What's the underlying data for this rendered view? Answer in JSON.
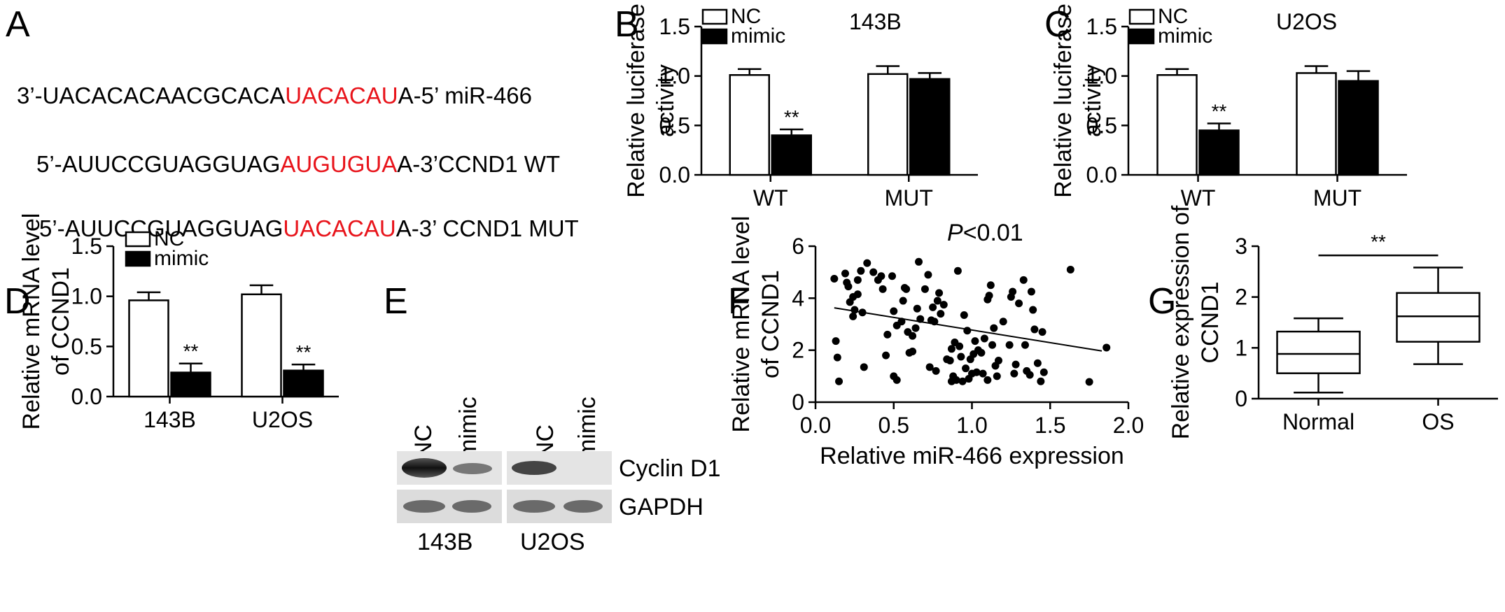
{
  "panels": {
    "A": "A",
    "B": "B",
    "C": "C",
    "D": "D",
    "E": "E",
    "F": "F",
    "G": "G"
  },
  "sequences": [
    {
      "prefix": "3’-UACACACAACGCACA",
      "highlight": "UACACAU",
      "suffix": "A-5’  miR-466"
    },
    {
      "prefix": "5’-AUUCCGUAGGUAG",
      "highlight": "AUGUGUA",
      "suffix": "A-3’CCND1 WT"
    },
    {
      "prefix": "5’-AUUCCGUAGGUAG",
      "highlight": "UACACAU",
      "suffix": "A-3’ CCND1 MUT"
    }
  ],
  "colors": {
    "highlight": "#e8141b",
    "black": "#000000",
    "white": "#ffffff"
  },
  "legend": {
    "nc": "NC",
    "mimic": "mimic"
  },
  "chart_data": [
    {
      "id": "B",
      "type": "bar",
      "title": "143B",
      "ylabel": [
        "Relative luciferase",
        "activity"
      ],
      "ylim": [
        0,
        1.5
      ],
      "yticks": [
        "0.0",
        "0.5",
        "1.0",
        "1.5"
      ],
      "categories": [
        "WT",
        "MUT"
      ],
      "series": [
        {
          "name": "NC",
          "values": [
            1.01,
            1.02
          ],
          "errors": [
            0.06,
            0.08
          ]
        },
        {
          "name": "mimic",
          "values": [
            0.4,
            0.97
          ],
          "errors": [
            0.06,
            0.06
          ]
        }
      ],
      "annotations": [
        {
          "category": "WT",
          "series": "mimic",
          "text": "**"
        }
      ]
    },
    {
      "id": "C",
      "type": "bar",
      "title": "U2OS",
      "ylabel": [
        "Relative luciferase",
        "activity"
      ],
      "ylim": [
        0,
        1.5
      ],
      "yticks": [
        "0.0",
        "0.5",
        "1.0",
        "1.5"
      ],
      "categories": [
        "WT",
        "MUT"
      ],
      "series": [
        {
          "name": "NC",
          "values": [
            1.01,
            1.03
          ],
          "errors": [
            0.06,
            0.07
          ]
        },
        {
          "name": "mimic",
          "values": [
            0.45,
            0.95
          ],
          "errors": [
            0.07,
            0.1
          ]
        }
      ],
      "annotations": [
        {
          "category": "WT",
          "series": "mimic",
          "text": "**"
        }
      ]
    },
    {
      "id": "D",
      "type": "bar",
      "title": "",
      "ylabel": [
        "Relative mRNA level",
        "of CCND1"
      ],
      "ylim": [
        0,
        1.5
      ],
      "yticks": [
        "0.0",
        "0.5",
        "1.0",
        "1.5"
      ],
      "categories": [
        "143B",
        "U2OS"
      ],
      "series": [
        {
          "name": "NC",
          "values": [
            0.96,
            1.02
          ],
          "errors": [
            0.08,
            0.09
          ]
        },
        {
          "name": "mimic",
          "values": [
            0.24,
            0.26
          ],
          "errors": [
            0.09,
            0.06
          ]
        }
      ],
      "annotations": [
        {
          "category": "143B",
          "series": "mimic",
          "text": "**"
        },
        {
          "category": "U2OS",
          "series": "mimic",
          "text": "**"
        }
      ]
    },
    {
      "id": "F",
      "type": "scatter",
      "title": "P<0.01",
      "xlabel": "Relative miR-466 expression",
      "ylabel": [
        "Relative mRNA level",
        "of CCND1"
      ],
      "xlim": [
        0,
        2.0
      ],
      "ylim": [
        0,
        6
      ],
      "xticks": [
        "0.0",
        "0.5",
        "1.0",
        "1.5",
        "2.0"
      ],
      "yticks": [
        "0",
        "2",
        "4",
        "6"
      ],
      "fit": {
        "x": [
          0.12,
          1.83
        ],
        "y": [
          3.63,
          1.97
        ]
      },
      "points": [
        [
          0.12,
          4.75
        ],
        [
          0.13,
          2.35
        ],
        [
          0.14,
          1.72
        ],
        [
          0.15,
          0.8
        ],
        [
          0.19,
          4.95
        ],
        [
          0.2,
          4.6
        ],
        [
          0.21,
          4.45
        ],
        [
          0.22,
          3.85
        ],
        [
          0.24,
          3.3
        ],
        [
          0.24,
          4.05
        ],
        [
          0.25,
          3.55
        ],
        [
          0.27,
          4.7
        ],
        [
          0.27,
          4.15
        ],
        [
          0.29,
          5.05
        ],
        [
          0.3,
          3.45
        ],
        [
          0.31,
          1.35
        ],
        [
          0.33,
          5.35
        ],
        [
          0.37,
          5.0
        ],
        [
          0.4,
          4.7
        ],
        [
          0.42,
          4.85
        ],
        [
          0.43,
          4.35
        ],
        [
          0.45,
          1.8
        ],
        [
          0.46,
          2.6
        ],
        [
          0.49,
          4.85
        ],
        [
          0.5,
          1.0
        ],
        [
          0.5,
          3.5
        ],
        [
          0.52,
          0.85
        ],
        [
          0.52,
          2.95
        ],
        [
          0.55,
          3.1
        ],
        [
          0.56,
          3.9
        ],
        [
          0.57,
          4.4
        ],
        [
          0.58,
          4.35
        ],
        [
          0.59,
          2.7
        ],
        [
          0.6,
          1.9
        ],
        [
          0.62,
          2.55
        ],
        [
          0.62,
          1.95
        ],
        [
          0.64,
          2.85
        ],
        [
          0.65,
          3.6
        ],
        [
          0.66,
          5.4
        ],
        [
          0.67,
          3.2
        ],
        [
          0.7,
          4.35
        ],
        [
          0.72,
          4.9
        ],
        [
          0.73,
          1.35
        ],
        [
          0.74,
          3.15
        ],
        [
          0.75,
          3.65
        ],
        [
          0.76,
          3.1
        ],
        [
          0.77,
          1.2
        ],
        [
          0.78,
          3.9
        ],
        [
          0.79,
          4.2
        ],
        [
          0.8,
          3.4
        ],
        [
          0.82,
          3.75
        ],
        [
          0.84,
          1.65
        ],
        [
          0.86,
          1.6
        ],
        [
          0.87,
          2.05
        ],
        [
          0.87,
          0.8
        ],
        [
          0.88,
          1.0
        ],
        [
          0.89,
          2.3
        ],
        [
          0.9,
          0.85
        ],
        [
          0.92,
          2.15
        ],
        [
          0.91,
          5.05
        ],
        [
          0.93,
          1.75
        ],
        [
          0.94,
          0.8
        ],
        [
          0.95,
          3.35
        ],
        [
          0.96,
          1.3
        ],
        [
          0.97,
          2.75
        ],
        [
          0.98,
          0.9
        ],
        [
          0.99,
          1.65
        ],
        [
          1.0,
          1.1
        ],
        [
          1.01,
          1.85
        ],
        [
          1.02,
          2.35
        ],
        [
          1.03,
          1.15
        ],
        [
          1.04,
          2.0
        ],
        [
          1.06,
          1.9
        ],
        [
          1.07,
          1.1
        ],
        [
          1.08,
          2.45
        ],
        [
          1.1,
          3.95
        ],
        [
          1.1,
          0.85
        ],
        [
          1.11,
          4.1
        ],
        [
          1.12,
          4.5
        ],
        [
          1.13,
          2.2
        ],
        [
          1.14,
          2.85
        ],
        [
          1.15,
          1.4
        ],
        [
          1.16,
          1.0
        ],
        [
          1.17,
          1.6
        ],
        [
          1.2,
          3.1
        ],
        [
          1.24,
          2.2
        ],
        [
          1.25,
          4.05
        ],
        [
          1.26,
          4.25
        ],
        [
          1.27,
          1.1
        ],
        [
          1.28,
          1.45
        ],
        [
          1.3,
          3.8
        ],
        [
          1.33,
          4.7
        ],
        [
          1.34,
          2.2
        ],
        [
          1.35,
          1.2
        ],
        [
          1.37,
          1.05
        ],
        [
          1.38,
          4.25
        ],
        [
          1.39,
          3.55
        ],
        [
          1.4,
          2.8
        ],
        [
          1.42,
          1.5
        ],
        [
          1.44,
          0.8
        ],
        [
          1.45,
          2.7
        ],
        [
          1.46,
          1.15
        ],
        [
          1.63,
          5.1
        ],
        [
          1.75,
          0.78
        ],
        [
          1.86,
          2.1
        ]
      ]
    },
    {
      "id": "G",
      "type": "boxplot",
      "title": "",
      "ylabel": [
        "Relative expression of",
        "CCND1"
      ],
      "ylim": [
        0,
        3
      ],
      "yticks": [
        "0",
        "1",
        "2",
        "3"
      ],
      "categories": [
        "Normal",
        "OS"
      ],
      "boxes": [
        {
          "min": 0.12,
          "q1": 0.5,
          "median": 0.88,
          "q3": 1.32,
          "max": 1.58
        },
        {
          "min": 0.68,
          "q1": 1.12,
          "median": 1.62,
          "q3": 2.08,
          "max": 2.58
        }
      ],
      "annotation": "**"
    }
  ],
  "blot": {
    "lanes": [
      "NC",
      "mimic",
      "NC",
      "mimic"
    ],
    "bands": [
      "Cyclin D1",
      "GAPDH"
    ],
    "groups": [
      "143B",
      "U2OS"
    ]
  }
}
